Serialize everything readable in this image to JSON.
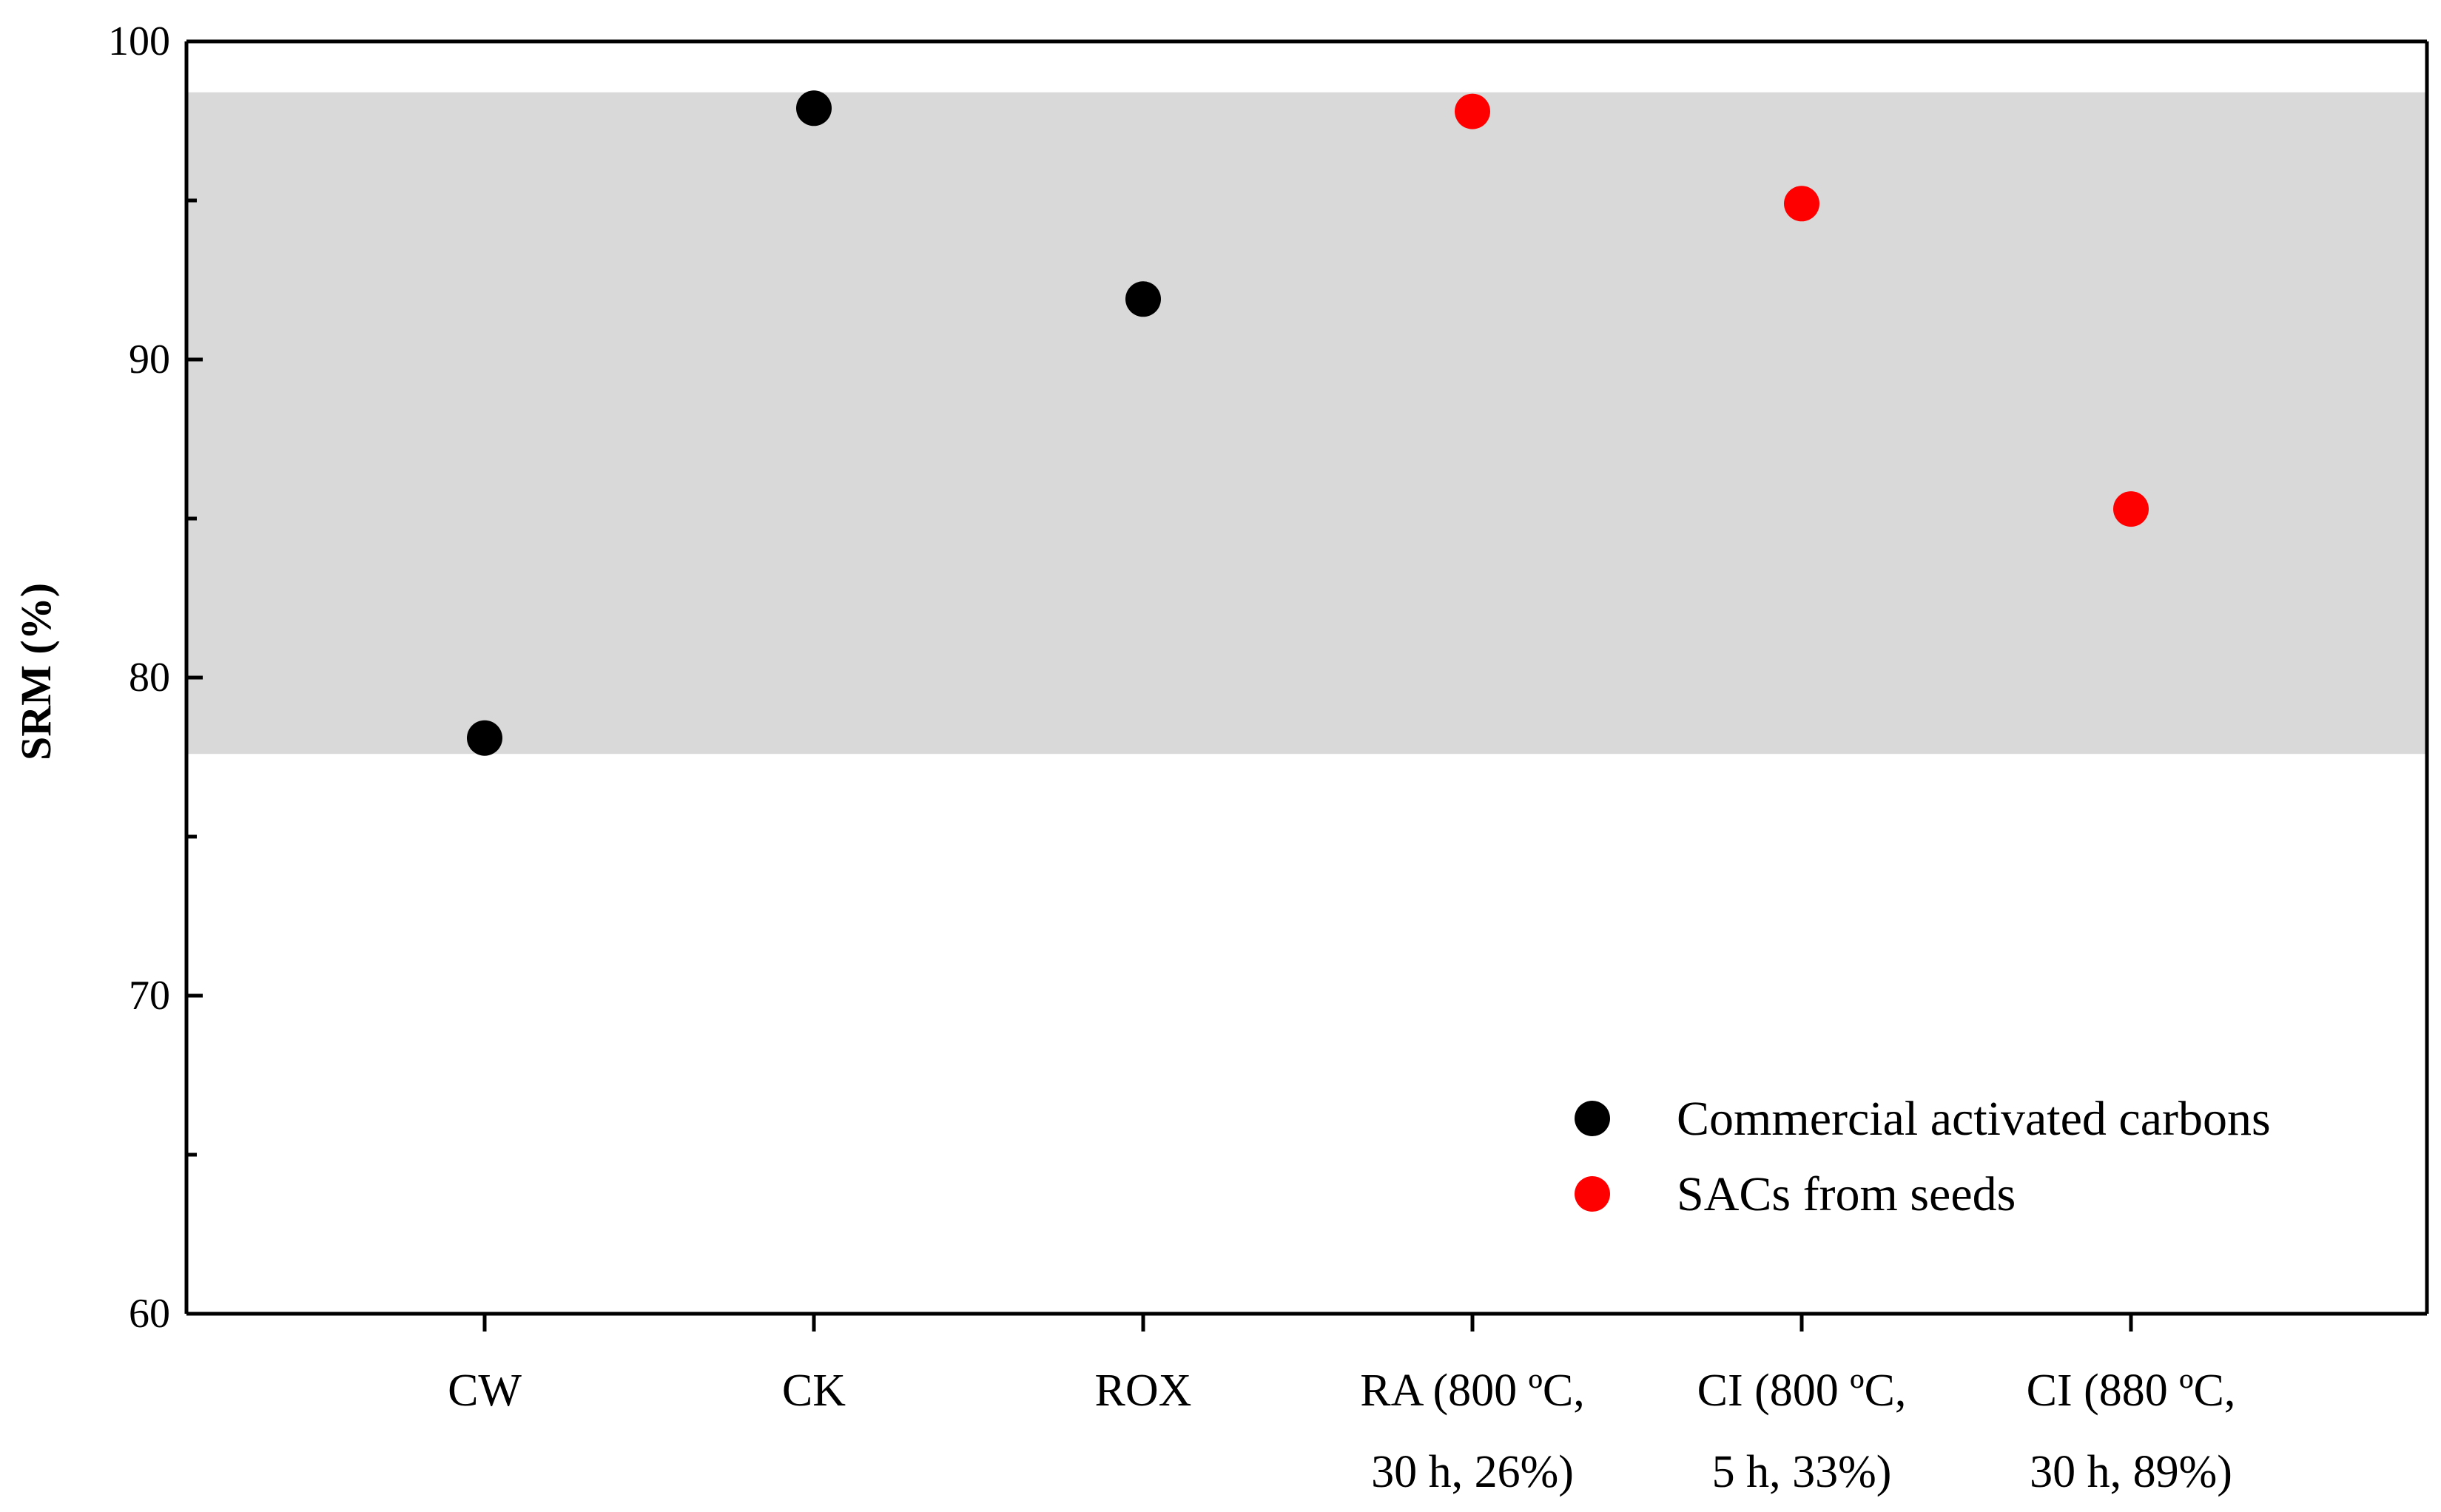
{
  "chart_data": {
    "type": "scatter",
    "title": "",
    "xlabel": "",
    "ylabel": "SRM (%)",
    "ylim": [
      60,
      100
    ],
    "yticks": [
      60,
      70,
      80,
      90,
      100
    ],
    "categories": [
      {
        "line1": "CW",
        "line2": ""
      },
      {
        "line1": "CK",
        "line2": ""
      },
      {
        "line1": "ROX",
        "line2": ""
      },
      {
        "line1": "RA (800 ºC,",
        "line2": "30 h, 26%)"
      },
      {
        "line1": "CI (800 ºC,",
        "line2": "5 h, 33%)"
      },
      {
        "line1": "CI (880 ºC,",
        "line2": "30 h, 89%)"
      }
    ],
    "shaded_band": {
      "y_from": 77.6,
      "y_to": 98.4,
      "color": "#d9d9d9"
    },
    "series": [
      {
        "name": "Commercial activated carbons",
        "color": "#000000",
        "points": [
          {
            "category": 0,
            "value": 78.1
          },
          {
            "category": 1,
            "value": 97.9
          },
          {
            "category": 2,
            "value": 91.9
          }
        ]
      },
      {
        "name": "SACs from seeds",
        "color": "#ff0000",
        "points": [
          {
            "category": 3,
            "value": 97.8
          },
          {
            "category": 4,
            "value": 94.9
          },
          {
            "category": 5,
            "value": 85.3
          }
        ]
      }
    ],
    "legend_position": "bottom-right"
  }
}
